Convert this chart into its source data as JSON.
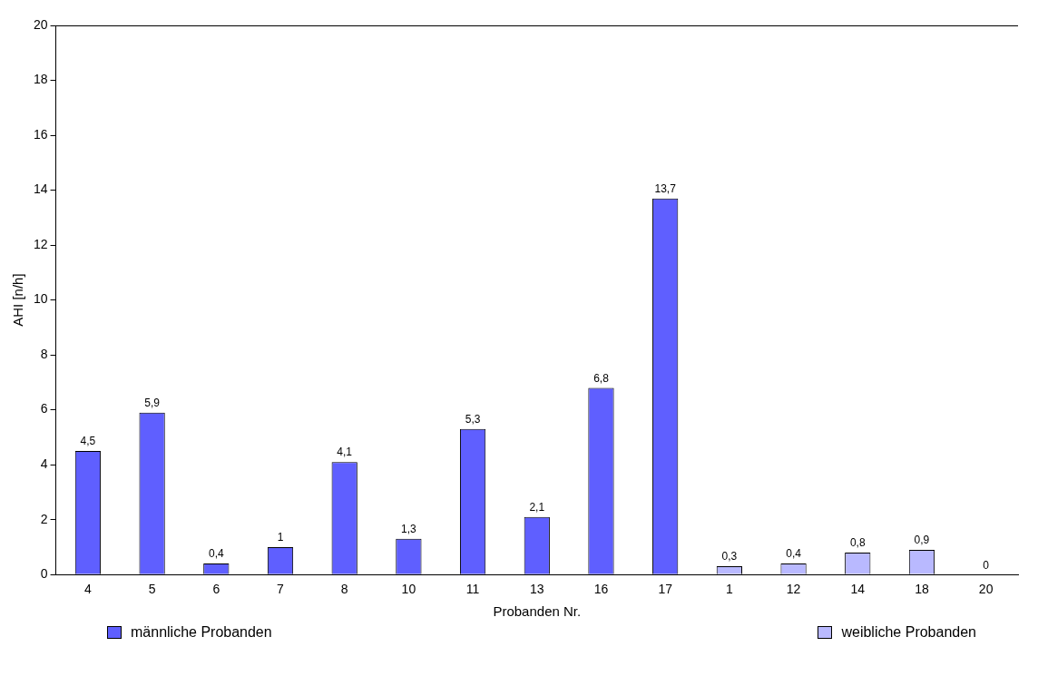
{
  "chart_data": {
    "type": "bar",
    "xlabel": "Probanden Nr.",
    "ylabel": "AHI [n/h]",
    "categories": [
      "4",
      "5",
      "6",
      "7",
      "8",
      "10",
      "11",
      "13",
      "16",
      "17",
      "1",
      "12",
      "14",
      "18",
      "20"
    ],
    "series": [
      {
        "name": "männliche Probanden",
        "color": "#5f5fff",
        "values": [
          4.5,
          5.9,
          0.4,
          1,
          4.1,
          1.3,
          5.3,
          2.1,
          6.8,
          13.7,
          null,
          null,
          null,
          null,
          null
        ],
        "value_labels": [
          "4,5",
          "5,9",
          "0,4",
          "1",
          "4,1",
          "1,3",
          "5,3",
          "2,1",
          "6,8",
          "13,7",
          null,
          null,
          null,
          null,
          null
        ]
      },
      {
        "name": "weibliche Probanden",
        "color": "#b9b9ff",
        "values": [
          null,
          null,
          null,
          null,
          null,
          null,
          null,
          null,
          null,
          null,
          0.3,
          0.4,
          0.8,
          0.9,
          0
        ],
        "value_labels": [
          null,
          null,
          null,
          null,
          null,
          null,
          null,
          null,
          null,
          null,
          "0,3",
          "0,4",
          "0,8",
          "0,9",
          "0"
        ]
      }
    ],
    "ylim": [
      0,
      20
    ],
    "yticks": [
      0,
      2,
      4,
      6,
      8,
      10,
      12,
      14,
      16,
      18,
      20
    ],
    "grid": false,
    "legend": "bottom"
  }
}
